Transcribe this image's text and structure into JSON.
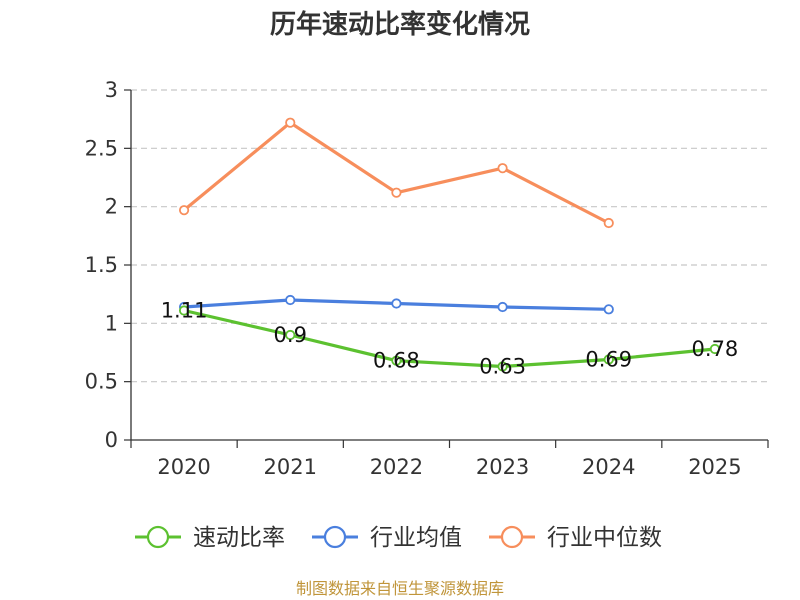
{
  "chart_data": {
    "type": "line",
    "title": "历年速动比率变化情况",
    "categories": [
      "2020",
      "2021",
      "2022",
      "2023",
      "2024",
      "2025"
    ],
    "ylim": [
      0,
      3
    ],
    "yticks": [
      0,
      0.5,
      1,
      1.5,
      2,
      2.5,
      3
    ],
    "ytick_labels": [
      "0",
      "0.5",
      "1",
      "1.5",
      "2",
      "2.5",
      "3"
    ],
    "grid": true,
    "legend_position": "bottom",
    "series": [
      {
        "name": "速动比率",
        "values": [
          1.11,
          0.9,
          0.68,
          0.63,
          0.69,
          0.78
        ],
        "labels": [
          "1.11",
          "0.9",
          "0.68",
          "0.63",
          "0.69",
          "0.78"
        ],
        "color": "#5cc130"
      },
      {
        "name": "行业均值",
        "values": [
          1.14,
          1.2,
          1.17,
          1.14,
          1.12,
          null
        ],
        "color": "#4a7fde"
      },
      {
        "name": "行业中位数",
        "values": [
          1.97,
          2.72,
          2.12,
          2.33,
          1.86,
          null
        ],
        "color": "#f78e5c"
      }
    ]
  },
  "source_text": "制图数据来自恒生聚源数据库"
}
